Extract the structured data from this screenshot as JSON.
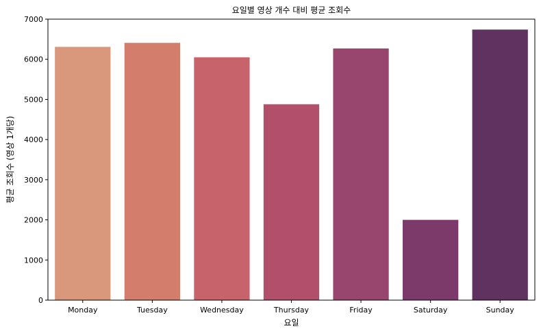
{
  "chart_data": {
    "type": "bar",
    "title": "요일별 영상 개수 대비 평균 조회수",
    "xlabel": "요일",
    "ylabel": "평균 조회수 (영상 1개당)",
    "categories": [
      "Monday",
      "Tuesday",
      "Wednesday",
      "Thursday",
      "Friday",
      "Saturday",
      "Sunday"
    ],
    "values": [
      6310,
      6410,
      6050,
      4880,
      6270,
      2000,
      6740
    ],
    "colors": [
      "#d9977c",
      "#d37e6d",
      "#c7646b",
      "#b2506b",
      "#99466e",
      "#7c3a6b",
      "#5f3260"
    ],
    "ylim": [
      0,
      7000
    ],
    "yticks": [
      0,
      1000,
      2000,
      3000,
      4000,
      5000,
      6000,
      7000
    ],
    "grid": false,
    "legend": "none"
  }
}
